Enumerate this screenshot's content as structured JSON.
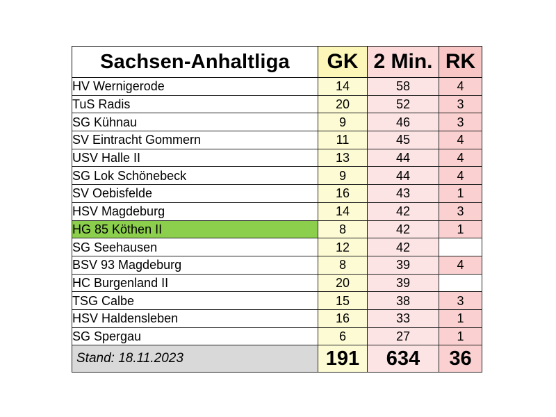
{
  "header": {
    "league": "Sachsen-Anhaltliga",
    "gk": "GK",
    "two_min": "2 Min.",
    "rk": "RK"
  },
  "rows": [
    {
      "team": "HV Wernigerode",
      "gk": "14",
      "two_min": "58",
      "rk": "4"
    },
    {
      "team": "TuS Radis",
      "gk": "20",
      "two_min": "52",
      "rk": "3"
    },
    {
      "team": "SG Kühnau",
      "gk": "9",
      "two_min": "46",
      "rk": "3"
    },
    {
      "team": "SV Eintracht Gommern",
      "gk": "11",
      "two_min": "45",
      "rk": "4"
    },
    {
      "team": "USV Halle II",
      "gk": "13",
      "two_min": "44",
      "rk": "4"
    },
    {
      "team": "SG Lok Schönebeck",
      "gk": "9",
      "two_min": "44",
      "rk": "4"
    },
    {
      "team": "SV Oebisfelde",
      "gk": "16",
      "two_min": "43",
      "rk": "1"
    },
    {
      "team": "HSV Magdeburg",
      "gk": "14",
      "two_min": "42",
      "rk": "3"
    },
    {
      "team": "HG 85 Köthen II",
      "gk": "8",
      "two_min": "42",
      "rk": "1"
    },
    {
      "team": "SG Seehausen",
      "gk": "12",
      "two_min": "42",
      "rk": ""
    },
    {
      "team": "BSV 93 Magdeburg",
      "gk": "8",
      "two_min": "39",
      "rk": "4"
    },
    {
      "team": "HC Burgenland II",
      "gk": "20",
      "two_min": "39",
      "rk": ""
    },
    {
      "team": "TSG Calbe",
      "gk": "15",
      "two_min": "38",
      "rk": "3"
    },
    {
      "team": "HSV Haldensleben",
      "gk": "16",
      "two_min": "33",
      "rk": "1"
    },
    {
      "team": "SG Spergau",
      "gk": "6",
      "two_min": "27",
      "rk": "1"
    }
  ],
  "footer": {
    "stand": "Stand: 18.11.2023",
    "gk_total": "191",
    "two_min_total": "634",
    "rk_total": "36"
  },
  "colors": {
    "highlight_row": "#8ccf4d",
    "gk_column": "#fdfbd4",
    "two_min_column": "#fce4e4",
    "rk_column": "#fbd0d0",
    "footer_label": "#d9d9d9"
  }
}
